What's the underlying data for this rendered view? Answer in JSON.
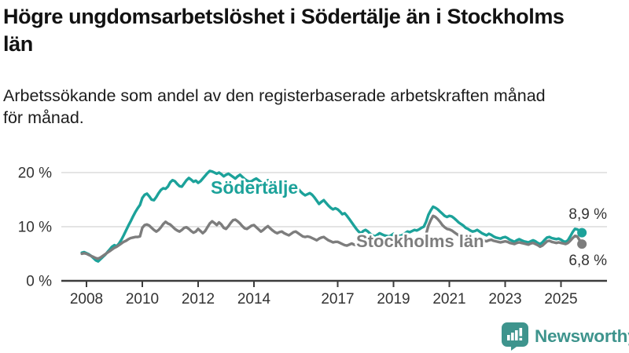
{
  "title": "Högre ungdomsarbetslöshet i Södertälje än i Stockholms län",
  "subtitle": "Arbetssökande som andel av den registerbaserade arbetskraften månad för månad.",
  "branding": {
    "logo_text": "Newsworthy",
    "logo_icon": "bar-chart-speech-bubble-icon",
    "logo_color": "#3E948D"
  },
  "colors": {
    "accent_teal": "#1CA29A",
    "series_gray": "#7D7D7D",
    "grid": "#DCDCDC",
    "axis": "#3C3C3C",
    "tick_text": "#333333",
    "value_text": "#333333",
    "title_text": "#121212"
  },
  "chart_data": {
    "type": "line",
    "unit": "%",
    "x_start": "2007-11",
    "x_step_months": 1,
    "xticks": [
      "2008",
      "2010",
      "2012",
      "2014",
      "2017",
      "2019",
      "2021",
      "2023",
      "2025"
    ],
    "yticks": [
      {
        "label": "0 %",
        "value": 0
      },
      {
        "label": "10 %",
        "value": 10
      },
      {
        "label": "20 %",
        "value": 20
      }
    ],
    "ylim": [
      0,
      21
    ],
    "grid": "horizontal",
    "legend": "inline-labels",
    "series": [
      {
        "name": "Södertälje",
        "color": "#1CA29A",
        "end_label": "8,9 %",
        "end_value": 8.9,
        "values": [
          5.2,
          5.3,
          5.1,
          4.9,
          4.6,
          4.2,
          3.8,
          3.6,
          4.0,
          4.4,
          4.8,
          5.3,
          5.8,
          6.3,
          6.6,
          6.4,
          6.9,
          7.6,
          8.4,
          9.3,
          10.2,
          11.0,
          11.9,
          12.7,
          13.4,
          14.0,
          15.3,
          15.9,
          16.1,
          15.6,
          15.0,
          14.9,
          15.5,
          16.2,
          16.8,
          17.1,
          17.0,
          17.4,
          18.2,
          18.6,
          18.4,
          17.9,
          17.5,
          17.4,
          18.0,
          18.6,
          19.0,
          18.7,
          18.3,
          18.5,
          18.1,
          18.4,
          18.9,
          19.4,
          19.9,
          20.3,
          20.2,
          20.0,
          19.8,
          20.0,
          19.7,
          19.3,
          19.6,
          19.8,
          19.5,
          19.2,
          18.9,
          19.3,
          19.6,
          19.2,
          18.8,
          18.5,
          18.3,
          18.4,
          18.7,
          18.9,
          18.6,
          18.2,
          17.9,
          18.3,
          18.6,
          18.2,
          17.8,
          17.5,
          17.3,
          17.5,
          17.8,
          17.9,
          17.6,
          17.2,
          16.9,
          17.2,
          17.4,
          17.0,
          16.5,
          16.1,
          15.8,
          16.0,
          16.2,
          15.9,
          15.4,
          14.8,
          14.2,
          14.6,
          14.9,
          14.4,
          13.9,
          13.5,
          13.2,
          13.4,
          13.2,
          12.8,
          12.3,
          12.5,
          12.0,
          11.4,
          10.8,
          10.2,
          9.6,
          9.1,
          8.8,
          9.2,
          9.4,
          9.1,
          8.7,
          8.4,
          8.2,
          8.5,
          8.8,
          8.6,
          8.4,
          8.3,
          8.2,
          8.4,
          8.7,
          8.6,
          8.4,
          8.3,
          8.5,
          8.8,
          9.1,
          9.0,
          9.2,
          9.4,
          9.3,
          9.5,
          9.8,
          10.0,
          10.9,
          12.2,
          13.0,
          13.7,
          13.5,
          13.2,
          12.8,
          12.4,
          12.0,
          11.8,
          12.0,
          11.9,
          11.6,
          11.2,
          10.8,
          10.5,
          10.2,
          9.8,
          9.6,
          9.3,
          9.1,
          9.2,
          9.4,
          9.1,
          8.8,
          8.6,
          8.4,
          8.7,
          8.5,
          8.2,
          8.0,
          7.9,
          7.8,
          8.0,
          8.1,
          7.9,
          7.6,
          7.4,
          7.2,
          7.5,
          7.7,
          7.5,
          7.3,
          7.2,
          7.1,
          7.3,
          7.5,
          7.3,
          7.0,
          6.8,
          7.1,
          7.6,
          8.0,
          8.1,
          7.9,
          7.8,
          7.7,
          7.8,
          7.6,
          7.3,
          7.2,
          7.5,
          8.2,
          9.0,
          9.6,
          9.5,
          9.2,
          8.9
        ]
      },
      {
        "name": "Stockholms län",
        "color": "#7D7D7D",
        "end_label": "6,8 %",
        "end_value": 6.8,
        "values": [
          5.0,
          5.1,
          5.0,
          4.8,
          4.6,
          4.4,
          4.2,
          4.1,
          4.3,
          4.6,
          4.9,
          5.2,
          5.5,
          5.8,
          6.1,
          6.3,
          6.6,
          6.9,
          7.2,
          7.4,
          7.7,
          7.9,
          8.0,
          8.1,
          8.1,
          8.2,
          9.8,
          10.3,
          10.4,
          10.2,
          9.8,
          9.4,
          9.1,
          9.4,
          9.9,
          10.5,
          10.9,
          10.6,
          10.4,
          10.0,
          9.6,
          9.3,
          9.1,
          9.4,
          9.8,
          9.9,
          9.6,
          9.2,
          8.9,
          9.1,
          9.6,
          9.2,
          8.8,
          9.2,
          9.9,
          10.6,
          11.0,
          10.7,
          10.3,
          10.8,
          10.4,
          9.8,
          9.6,
          10.1,
          10.7,
          11.2,
          11.3,
          11.0,
          10.6,
          10.1,
          9.7,
          9.6,
          9.9,
          10.2,
          10.3,
          9.9,
          9.5,
          9.1,
          9.4,
          9.8,
          10.1,
          9.7,
          9.3,
          9.0,
          8.8,
          9.0,
          9.1,
          8.8,
          8.6,
          8.4,
          8.7,
          9.0,
          9.1,
          8.8,
          8.5,
          8.2,
          8.1,
          8.2,
          8.1,
          7.9,
          7.7,
          7.5,
          7.8,
          8.0,
          8.1,
          7.8,
          7.5,
          7.3,
          7.1,
          7.2,
          7.2,
          7.0,
          6.8,
          6.6,
          6.5,
          6.7,
          6.9,
          6.7,
          6.6,
          6.5,
          6.4,
          6.6,
          6.7,
          6.6,
          6.4,
          6.3,
          6.4,
          6.6,
          6.8,
          6.6,
          6.5,
          6.4,
          6.4,
          6.5,
          6.6,
          6.5,
          6.4,
          6.4,
          6.6,
          6.8,
          7.0,
          6.9,
          7.0,
          7.1,
          7.2,
          7.3,
          7.5,
          7.7,
          8.6,
          10.2,
          11.2,
          12.0,
          11.8,
          11.4,
          10.9,
          10.3,
          9.9,
          9.6,
          9.5,
          9.3,
          9.0,
          8.7,
          8.4,
          8.2,
          8.0,
          7.9,
          7.8,
          7.7,
          7.6,
          7.7,
          7.8,
          7.7,
          7.5,
          7.4,
          7.3,
          7.5,
          7.6,
          7.4,
          7.3,
          7.2,
          7.1,
          7.2,
          7.3,
          7.2,
          7.0,
          6.9,
          6.8,
          7.0,
          7.1,
          7.0,
          6.9,
          6.8,
          6.7,
          6.9,
          7.0,
          6.8,
          6.6,
          6.3,
          6.5,
          6.9,
          7.3,
          7.4,
          7.2,
          7.1,
          7.0,
          7.1,
          7.0,
          6.9,
          6.8,
          7.0,
          7.4,
          7.9,
          8.3,
          8.2,
          7.5,
          6.8
        ]
      }
    ]
  }
}
